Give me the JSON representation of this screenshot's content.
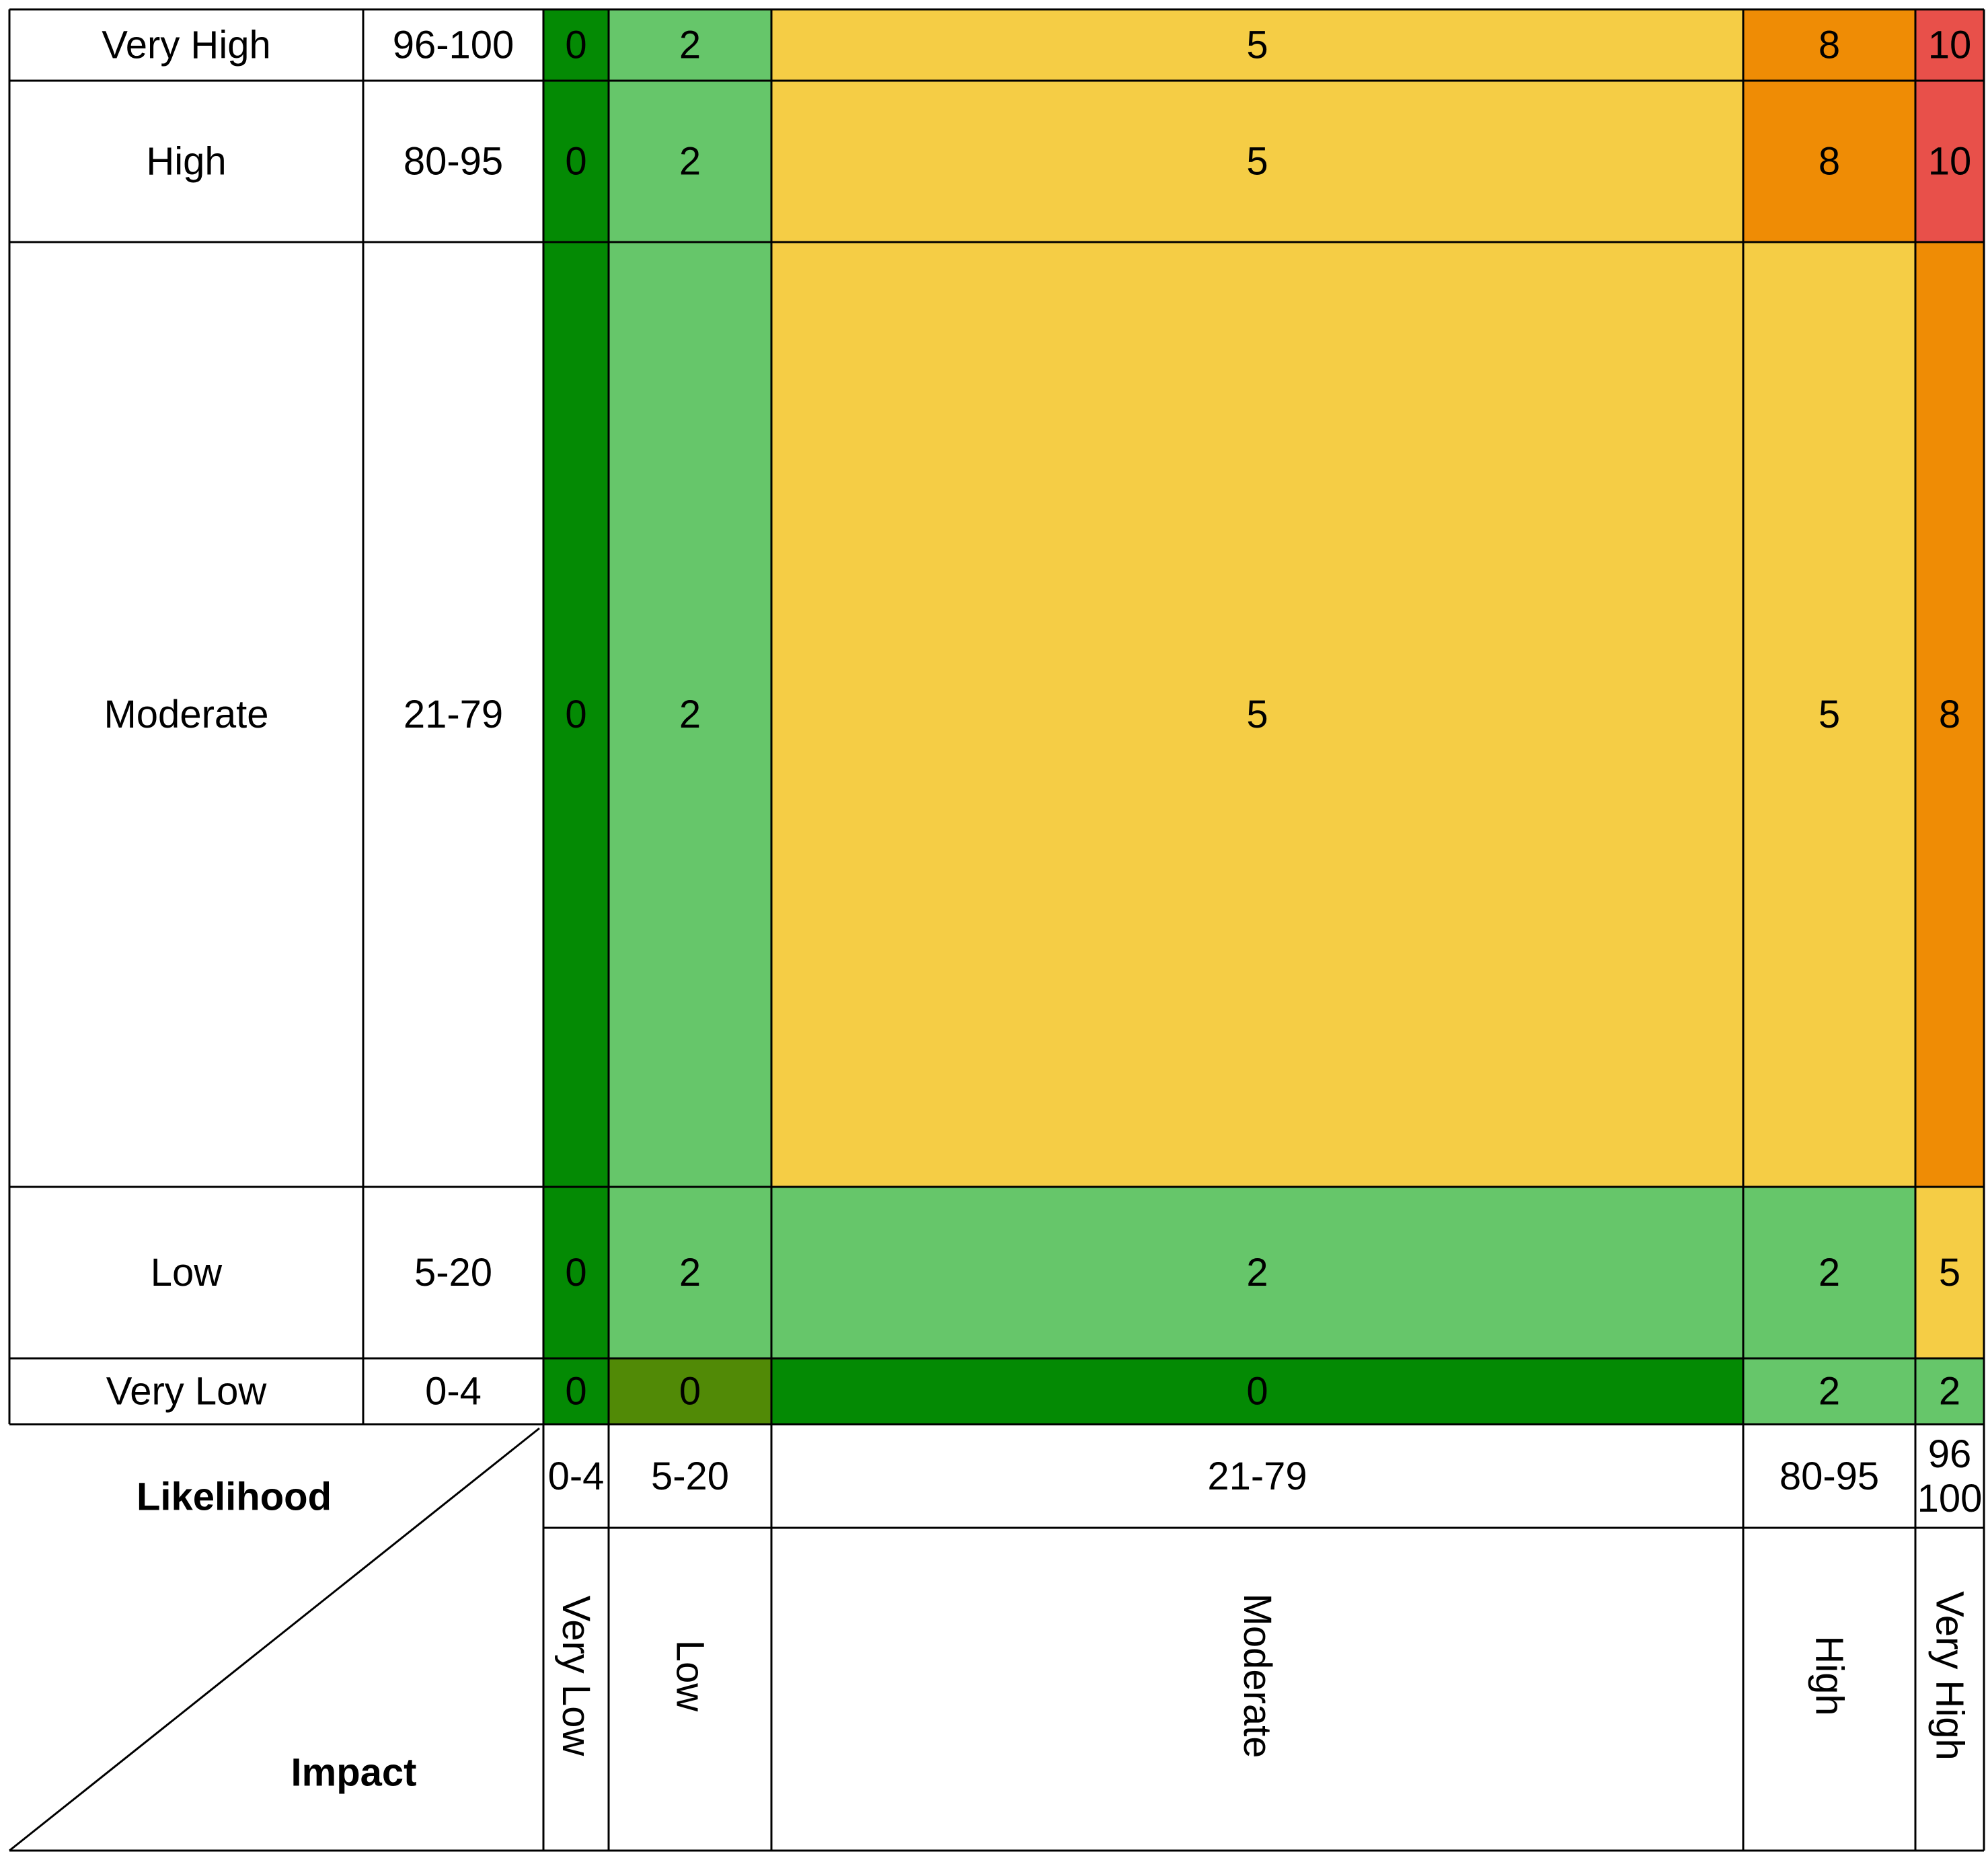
{
  "axes": {
    "likelihood_title": "Likelihood",
    "impact_title": "Impact"
  },
  "rows": [
    {
      "label": "Very High",
      "range": "96-100"
    },
    {
      "label": "High",
      "range": "80-95"
    },
    {
      "label": "Moderate",
      "range": "21-79"
    },
    {
      "label": "Low",
      "range": "5-20"
    },
    {
      "label": "Very Low",
      "range": "0-4"
    }
  ],
  "columns": [
    {
      "label": "Very Low",
      "range": "0-4",
      "range_lines": [
        "0-4"
      ]
    },
    {
      "label": "Low",
      "range": "5-20",
      "range_lines": [
        "5-20"
      ]
    },
    {
      "label": "Moderate",
      "range": "21-79",
      "range_lines": [
        "21-79"
      ]
    },
    {
      "label": "High",
      "range": "80-95",
      "range_lines": [
        "80-95"
      ]
    },
    {
      "label": "Very High",
      "range": "96 100",
      "range_lines": [
        "96",
        "100"
      ]
    }
  ],
  "cells": [
    [
      {
        "value": "0",
        "level": "dark_green"
      },
      {
        "value": "2",
        "level": "green"
      },
      {
        "value": "5",
        "level": "yellow"
      },
      {
        "value": "8",
        "level": "orange"
      },
      {
        "value": "10",
        "level": "red"
      }
    ],
    [
      {
        "value": "0",
        "level": "dark_green"
      },
      {
        "value": "2",
        "level": "green"
      },
      {
        "value": "5",
        "level": "yellow"
      },
      {
        "value": "8",
        "level": "orange"
      },
      {
        "value": "10",
        "level": "red"
      }
    ],
    [
      {
        "value": "0",
        "level": "dark_green"
      },
      {
        "value": "2",
        "level": "green"
      },
      {
        "value": "5",
        "level": "yellow"
      },
      {
        "value": "5",
        "level": "yellow"
      },
      {
        "value": "8",
        "level": "orange"
      }
    ],
    [
      {
        "value": "0",
        "level": "dark_green"
      },
      {
        "value": "2",
        "level": "green"
      },
      {
        "value": "2",
        "level": "green"
      },
      {
        "value": "2",
        "level": "green"
      },
      {
        "value": "5",
        "level": "yellow"
      }
    ],
    [
      {
        "value": "0",
        "level": "dark_green"
      },
      {
        "value": "0",
        "level": "olive"
      },
      {
        "value": "0",
        "level": "dark_green"
      },
      {
        "value": "2",
        "level": "green"
      },
      {
        "value": "2",
        "level": "green"
      }
    ]
  ],
  "colors": {
    "dark_green": "#048a04",
    "green": "#66c66a",
    "yellow": "#f5cd45",
    "orange": "#ef8c05",
    "red": "#e8504a",
    "olive": "#518a06",
    "line": "#000000",
    "background": "#ffffff"
  }
}
